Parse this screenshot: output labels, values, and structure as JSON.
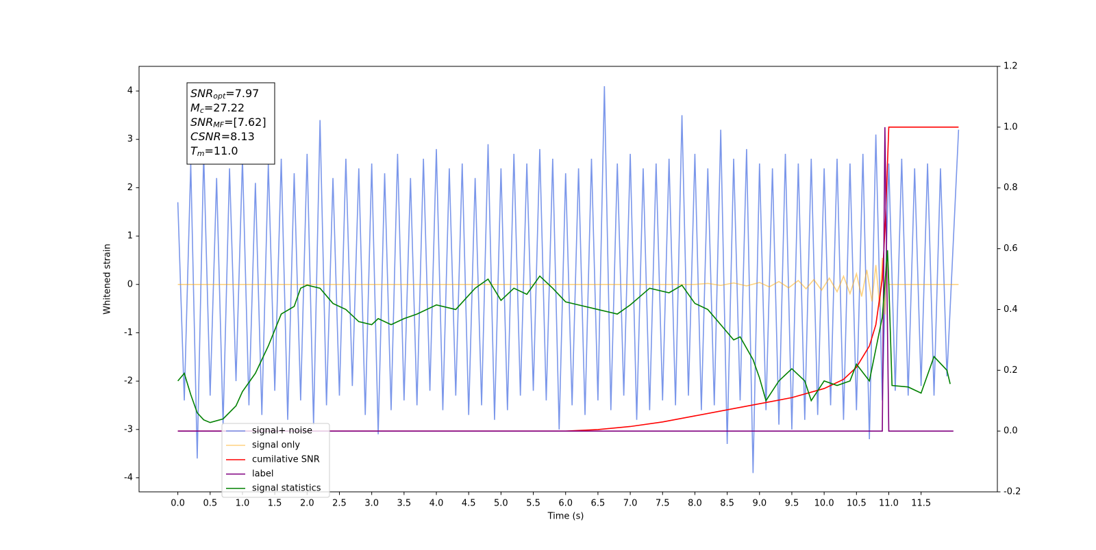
{
  "chart_data": {
    "type": "line",
    "xlabel": "Time (s)",
    "ylabel": "Whitened strain",
    "xlim": [
      -0.6,
      12.68
    ],
    "ylim": [
      -4.29,
      4.51
    ],
    "y2lim": [
      -0.2,
      1.2
    ],
    "xticks": [
      {
        "value": 0,
        "label": "0.0"
      },
      0.5,
      {
        "value": 1,
        "label": "1.0"
      },
      1.5,
      {
        "value": 2,
        "label": "2.0"
      },
      2.5,
      {
        "value": 3,
        "label": "3.0"
      },
      3.5,
      {
        "value": 4,
        "label": "4.0"
      },
      4.5,
      {
        "value": 5,
        "label": "5.0"
      },
      5.5,
      {
        "value": 6,
        "label": "6.0"
      },
      6.5,
      {
        "value": 7,
        "label": "7.0"
      },
      7.5,
      {
        "value": 8,
        "label": "8.0"
      },
      8.5,
      {
        "value": 9,
        "label": "9.0"
      },
      9.5,
      {
        "value": 10,
        "label": "10.0"
      },
      10.5,
      {
        "value": 11,
        "label": "11.0"
      },
      11.5
    ],
    "yticks": [
      -4,
      -3,
      -2,
      -1,
      0,
      1,
      2,
      3,
      4
    ],
    "y2ticks": [
      -0.2,
      {
        "value": 0,
        "label": "0.0"
      },
      0.2,
      0.4,
      0.6,
      0.8,
      {
        "value": 1,
        "label": "1.0"
      },
      1.2
    ],
    "legend_loc": "lower left",
    "annotation": [
      {
        "main": "SNR",
        "sub": "opt",
        "rest": "=7.97"
      },
      {
        "main": "M",
        "sub": "c",
        "rest": "=27.22"
      },
      {
        "main": "SNR",
        "sub": "MF",
        "rest": "=[7.62]"
      },
      {
        "main": "CSNR",
        "rest": "=8.13"
      },
      {
        "main": "T",
        "sub": "m",
        "rest": "=11.0"
      }
    ],
    "series": [
      {
        "name": "signal+ noise",
        "color": "#4169e1",
        "alpha": 0.7,
        "axis": "y",
        "x": [
          0.0,
          0.1,
          0.2,
          0.3,
          0.4,
          0.5,
          0.6,
          0.7,
          0.8,
          0.9,
          1.0,
          1.1,
          1.2,
          1.3,
          1.4,
          1.5,
          1.6,
          1.7,
          1.8,
          1.9,
          2.0,
          2.1,
          2.2,
          2.3,
          2.4,
          2.5,
          2.6,
          2.7,
          2.8,
          2.9,
          3.0,
          3.1,
          3.2,
          3.3,
          3.4,
          3.5,
          3.6,
          3.7,
          3.8,
          3.9,
          4.0,
          4.1,
          4.2,
          4.3,
          4.4,
          4.5,
          4.6,
          4.7,
          4.8,
          4.9,
          5.0,
          5.1,
          5.2,
          5.3,
          5.4,
          5.5,
          5.6,
          5.7,
          5.8,
          5.9,
          6.0,
          6.1,
          6.2,
          6.3,
          6.4,
          6.5,
          6.6,
          6.7,
          6.8,
          6.9,
          7.0,
          7.1,
          7.2,
          7.3,
          7.4,
          7.5,
          7.6,
          7.7,
          7.8,
          7.9,
          8.0,
          8.1,
          8.2,
          8.3,
          8.4,
          8.5,
          8.6,
          8.7,
          8.8,
          8.9,
          9.0,
          9.1,
          9.2,
          9.3,
          9.4,
          9.5,
          9.6,
          9.7,
          9.8,
          9.9,
          10.0,
          10.1,
          10.2,
          10.3,
          10.4,
          10.5,
          10.6,
          10.7,
          10.8,
          10.9,
          11.0,
          11.1,
          11.2,
          11.3,
          11.4,
          11.5,
          11.6,
          11.7,
          11.8,
          11.9,
          12.08
        ],
        "values": [
          1.7,
          -2.4,
          2.5,
          -3.6,
          2.7,
          -2.3,
          2.2,
          -2.9,
          2.4,
          -2.0,
          2.6,
          -2.5,
          2.1,
          -2.7,
          2.5,
          -2.2,
          2.6,
          -2.8,
          2.3,
          -2.4,
          2.7,
          -2.9,
          3.4,
          -2.5,
          2.2,
          -2.3,
          2.6,
          -2.1,
          2.4,
          -2.7,
          2.5,
          -3.1,
          2.3,
          -2.6,
          2.7,
          -2.4,
          2.2,
          -2.5,
          2.6,
          -2.2,
          2.8,
          -2.6,
          2.4,
          -2.3,
          2.5,
          -2.7,
          2.2,
          -2.5,
          2.9,
          -2.8,
          2.4,
          -2.6,
          2.7,
          -2.3,
          2.5,
          -2.2,
          2.8,
          -2.4,
          2.6,
          -3.0,
          2.3,
          -2.5,
          2.4,
          -2.7,
          2.6,
          -2.4,
          4.1,
          -2.6,
          2.5,
          -2.3,
          2.7,
          -2.8,
          2.4,
          -2.6,
          2.5,
          -2.4,
          2.6,
          -2.5,
          3.5,
          -2.3,
          2.7,
          -2.6,
          2.4,
          -2.5,
          3.2,
          -3.3,
          2.6,
          -2.4,
          2.8,
          -3.9,
          2.5,
          -2.6,
          2.4,
          -2.9,
          2.7,
          -3.0,
          2.5,
          -2.8,
          2.6,
          -2.7,
          2.4,
          -2.5,
          2.6,
          -2.8,
          2.5,
          -2.6,
          2.7,
          -3.2,
          3.1,
          -2.4,
          2.5,
          -2.2,
          2.6,
          -2.3,
          2.4,
          -2.1,
          2.5,
          -2.3,
          2.4,
          -1.9,
          3.2
        ]
      },
      {
        "name": "signal only",
        "color": "#ffa500",
        "alpha": 0.5,
        "axis": "y",
        "x": [
          0.0,
          8.0,
          8.2,
          8.4,
          8.6,
          8.8,
          9.0,
          9.15,
          9.3,
          9.45,
          9.6,
          9.72,
          9.84,
          9.96,
          10.08,
          10.2,
          10.3,
          10.4,
          10.5,
          10.58,
          10.66,
          10.74,
          10.8,
          10.86,
          10.9,
          10.94,
          10.97,
          11.0,
          12.08
        ],
        "values": [
          0,
          0,
          0.02,
          -0.02,
          0.03,
          -0.03,
          0.04,
          -0.05,
          0.06,
          -0.07,
          0.08,
          -0.09,
          0.1,
          -0.12,
          0.13,
          -0.15,
          0.17,
          -0.19,
          0.22,
          -0.25,
          0.3,
          -0.35,
          0.4,
          -0.47,
          0.55,
          -0.62,
          0.7,
          0,
          0
        ]
      },
      {
        "name": "cumilative SNR",
        "color": "#ff0000",
        "axis": "y2",
        "x": [
          0.0,
          6.0,
          6.5,
          7.0,
          7.5,
          8.0,
          8.5,
          9.0,
          9.5,
          10.0,
          10.3,
          10.5,
          10.7,
          10.8,
          10.9,
          10.95,
          11.0,
          12.08
        ],
        "values": [
          0,
          0,
          0.005,
          0.015,
          0.03,
          0.05,
          0.07,
          0.09,
          0.11,
          0.14,
          0.17,
          0.21,
          0.28,
          0.35,
          0.5,
          0.7,
          1.0,
          1.0
        ]
      },
      {
        "name": "label",
        "color": "#800080",
        "axis": "y2",
        "x": [
          0.0,
          10.9,
          10.94,
          11.0,
          12.0
        ],
        "values": [
          0,
          0,
          1,
          0,
          0
        ]
      },
      {
        "name": "signal statistics",
        "color": "#008000",
        "axis": "y2",
        "x": [
          0.0,
          0.1,
          0.2,
          0.3,
          0.4,
          0.5,
          0.7,
          0.9,
          1.0,
          1.2,
          1.4,
          1.6,
          1.8,
          1.9,
          2.0,
          2.2,
          2.4,
          2.6,
          2.8,
          3.0,
          3.1,
          3.3,
          3.5,
          3.7,
          4.0,
          4.3,
          4.6,
          4.8,
          5.0,
          5.2,
          5.4,
          5.6,
          5.8,
          6.0,
          6.2,
          6.5,
          6.8,
          7.0,
          7.3,
          7.6,
          7.8,
          8.0,
          8.2,
          8.4,
          8.6,
          8.7,
          8.9,
          9.0,
          9.1,
          9.3,
          9.5,
          9.7,
          9.8,
          10.0,
          10.2,
          10.4,
          10.5,
          10.7,
          10.9,
          10.98,
          11.0,
          11.05,
          11.3,
          11.5,
          11.7,
          11.9,
          11.95
        ],
        "values": [
          0.165,
          0.19,
          0.12,
          0.06,
          0.037,
          0.028,
          0.04,
          0.083,
          0.13,
          0.19,
          0.28,
          0.385,
          0.41,
          0.47,
          0.48,
          0.47,
          0.42,
          0.4,
          0.36,
          0.35,
          0.37,
          0.35,
          0.37,
          0.385,
          0.415,
          0.4,
          0.47,
          0.5,
          0.43,
          0.47,
          0.45,
          0.51,
          0.47,
          0.425,
          0.415,
          0.4,
          0.385,
          0.415,
          0.47,
          0.455,
          0.48,
          0.42,
          0.4,
          0.35,
          0.3,
          0.31,
          0.235,
          0.175,
          0.1,
          0.165,
          0.205,
          0.165,
          0.1,
          0.165,
          0.15,
          0.165,
          0.22,
          0.165,
          0.375,
          0.595,
          0.49,
          0.15,
          0.145,
          0.125,
          0.245,
          0.2,
          0.155
        ]
      }
    ]
  }
}
